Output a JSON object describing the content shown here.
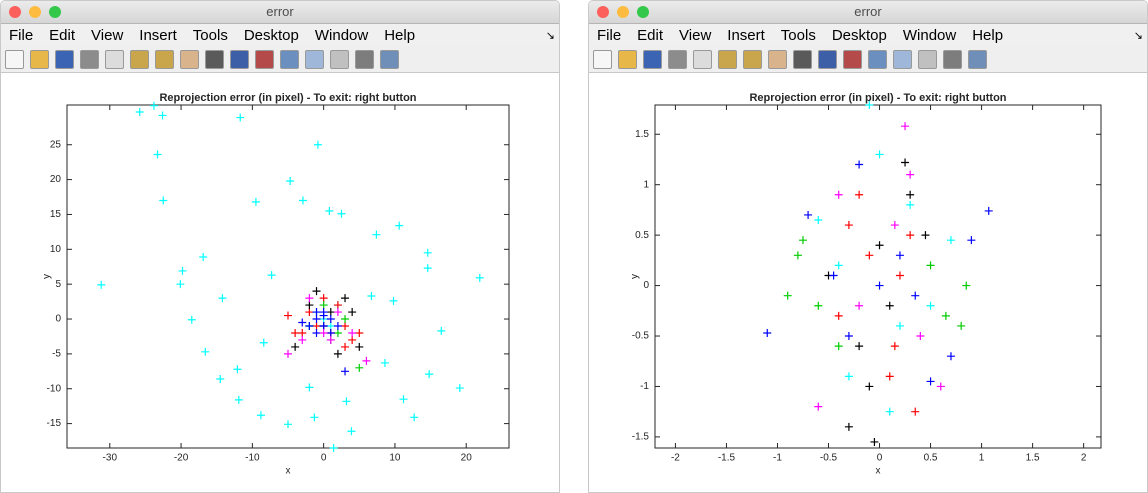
{
  "windows": [
    {
      "title": "error",
      "menu": [
        "File",
        "Edit",
        "View",
        "Insert",
        "Tools",
        "Desktop",
        "Window",
        "Help"
      ]
    },
    {
      "title": "error",
      "menu": [
        "File",
        "Edit",
        "View",
        "Insert",
        "Tools",
        "Desktop",
        "Window",
        "Help"
      ]
    }
  ],
  "chart_data": [
    {
      "type": "scatter",
      "title": "Reprojection error (in pixel) - To exit: right button",
      "x_label": "x",
      "y_label": "y",
      "xlim": [
        -36,
        26
      ],
      "ylim": [
        -18.5,
        30.7
      ],
      "xticks": [
        -30,
        -20,
        -10,
        0,
        10,
        20
      ],
      "yticks": [
        -15,
        -10,
        -5,
        0,
        5,
        10,
        15,
        20,
        25
      ],
      "series": [
        {
          "color": "#00ffff",
          "x": [
            -25.8,
            -23.8,
            -22.6,
            -23.3,
            -22.5,
            -11.7,
            -0.8,
            -31.2,
            -19.8,
            -20.1,
            -16.9,
            -18.5,
            -14.2,
            -16.6,
            -14.5,
            -12.1,
            -11.9,
            -8.8,
            -9.5,
            -4.7,
            -2.9,
            0.8,
            2.5,
            10.6,
            14.6,
            14.6,
            21.9,
            16.5,
            7.4,
            19.1,
            12.7,
            11.2,
            3.9,
            1.4,
            -5.0,
            -1.3,
            -7.3,
            14.8,
            8.6,
            6.7,
            9.8,
            -8.4,
            -2.0,
            3.2,
            0,
            1,
            -1,
            2,
            -2
          ],
          "y": [
            29.7,
            30.6,
            29.2,
            23.6,
            17.0,
            28.9,
            25.0,
            4.9,
            6.9,
            5.0,
            8.9,
            -0.1,
            3.0,
            -4.7,
            -8.6,
            -7.2,
            -11.6,
            -13.8,
            16.8,
            19.8,
            17.0,
            15.5,
            15.1,
            13.4,
            9.5,
            7.3,
            5.9,
            -1.7,
            12.1,
            -9.9,
            -14.1,
            -11.5,
            -16.1,
            -18.5,
            -15.1,
            -14.1,
            6.3,
            -7.9,
            -6.3,
            3.3,
            2.6,
            -3.4,
            -9.8,
            -11.8,
            0,
            -1,
            1,
            2,
            -1
          ]
        },
        {
          "color": "#ff0000",
          "x": [
            -5,
            -3,
            -2,
            1,
            3,
            4,
            2,
            -1,
            0,
            5,
            3,
            -4
          ],
          "y": [
            0.5,
            -2,
            1,
            -2,
            -1,
            -3,
            2,
            -1,
            3,
            -2,
            -4,
            -2
          ]
        },
        {
          "color": "#000000",
          "x": [
            -4,
            2,
            -2,
            0,
            3,
            1,
            -1,
            5,
            4
          ],
          "y": [
            -4,
            -5,
            2,
            -1,
            3,
            1,
            4,
            -4,
            1
          ]
        },
        {
          "color": "#00cc00",
          "x": [
            0,
            1,
            5,
            3,
            -2,
            2
          ],
          "y": [
            2,
            -3,
            -7,
            0,
            -1,
            -2
          ]
        },
        {
          "color": "#0000ff",
          "x": [
            -1,
            0,
            1,
            -2,
            -1,
            0,
            2,
            -3,
            3,
            1,
            0,
            -1
          ],
          "y": [
            0,
            -1,
            0,
            -1,
            1,
            1,
            -1,
            -0.5,
            -7.5,
            -2,
            0.5,
            -2
          ]
        },
        {
          "color": "#ff00ff",
          "x": [
            -5,
            -3,
            2,
            4,
            0,
            6,
            -2,
            1
          ],
          "y": [
            -5,
            -3,
            1,
            -2,
            -2,
            -6,
            3,
            -3
          ]
        }
      ]
    },
    {
      "type": "scatter",
      "title": "Reprojection error (in pixel) - To exit: right button",
      "x_label": "x",
      "y_label": "y",
      "xlim": [
        -2.2,
        2.17
      ],
      "ylim": [
        -1.61,
        1.79
      ],
      "xticks": [
        -2,
        -1.5,
        -1,
        -0.5,
        0,
        0.5,
        1,
        1.5,
        2
      ],
      "yticks": [
        -1.5,
        -1,
        -0.5,
        0,
        0.5,
        1,
        1.5
      ],
      "series": [
        {
          "color": "#00ffff",
          "x": [
            -0.1,
            0.0,
            -0.6,
            0.7,
            0.5,
            -0.3,
            0.1,
            0.3,
            -0.4,
            0.2
          ],
          "y": [
            1.79,
            1.3,
            0.65,
            0.45,
            -0.2,
            -0.9,
            -1.25,
            0.8,
            0.2,
            -0.4
          ]
        },
        {
          "color": "#ff0000",
          "x": [
            -0.2,
            0.35,
            0.15,
            -0.1,
            0.3,
            -0.4,
            0.1,
            0.2,
            -0.3
          ],
          "y": [
            0.9,
            -1.25,
            -0.6,
            0.3,
            0.5,
            -0.3,
            -0.9,
            0.1,
            0.6
          ]
        },
        {
          "color": "#000000",
          "x": [
            0.25,
            -0.3,
            -0.05,
            0.45,
            -0.5,
            0.1,
            -0.2,
            0.3,
            -0.1,
            0.0
          ],
          "y": [
            1.22,
            -1.4,
            -1.55,
            0.5,
            0.1,
            -0.2,
            -0.6,
            0.9,
            -1.0,
            0.4
          ]
        },
        {
          "color": "#00cc00",
          "x": [
            -0.75,
            -0.9,
            0.8,
            0.85,
            0.65,
            -0.6,
            -0.8,
            0.5,
            -0.4
          ],
          "y": [
            0.45,
            -0.1,
            -0.4,
            0.0,
            -0.3,
            -0.2,
            0.3,
            0.2,
            -0.6
          ]
        },
        {
          "color": "#0000ff",
          "x": [
            -1.1,
            1.07,
            -0.2,
            0.5,
            -0.7,
            0.9,
            -0.3,
            0.2,
            0.0,
            -0.45,
            0.35,
            0.7
          ],
          "y": [
            -0.47,
            0.74,
            1.2,
            -0.95,
            0.7,
            0.45,
            -0.5,
            0.3,
            0.0,
            0.1,
            -0.1,
            -0.7
          ]
        },
        {
          "color": "#ff00ff",
          "x": [
            0.25,
            -0.6,
            0.6,
            0.3,
            -0.4,
            0.4,
            -0.2,
            0.15
          ],
          "y": [
            1.58,
            -1.2,
            -1.0,
            1.1,
            0.9,
            -0.5,
            -0.2,
            0.6
          ]
        }
      ]
    }
  ]
}
